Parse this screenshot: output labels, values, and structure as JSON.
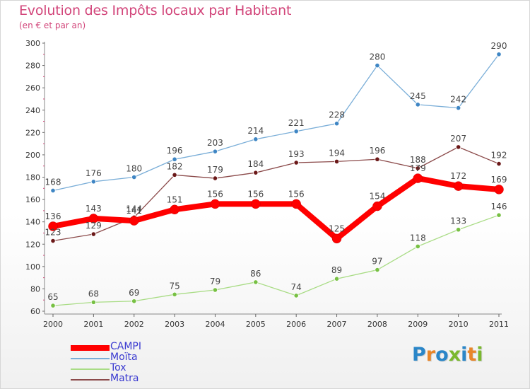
{
  "title": "Evolution des Impôts locaux par Habitant",
  "subtitle": "(en € et par an)",
  "logo": {
    "text": "Proxiti",
    "colors": [
      "#2a86c8",
      "#e8862a",
      "#2a86c8",
      "#7ab82e",
      "#2a86c8",
      "#e8862a",
      "#7ab82e"
    ]
  },
  "chart_data": {
    "type": "line",
    "title": "Evolution des Impôts locaux par Habitant",
    "subtitle": "(en € et par an)",
    "x": [
      "2000",
      "2001",
      "2002",
      "2003",
      "2004",
      "2005",
      "2006",
      "2007",
      "2008",
      "2009",
      "2010",
      "2011"
    ],
    "ylim": [
      60,
      300
    ],
    "yticks": [
      60,
      80,
      100,
      120,
      140,
      160,
      180,
      200,
      220,
      240,
      260,
      280,
      300
    ],
    "grid": false,
    "legend_position": "bottom-left",
    "series": [
      {
        "name": "CAMPI",
        "color": "#ff0000",
        "marker_color": "#ff0000",
        "thick": true,
        "values": [
          136,
          143,
          141,
          151,
          156,
          156,
          156,
          125,
          154,
          179,
          172,
          169
        ],
        "labels": [
          "136",
          "143",
          "141",
          "151",
          "156",
          "156",
          "156",
          "125",
          "154",
          "179",
          "172",
          "169"
        ]
      },
      {
        "name": "Moïta",
        "color": "#7aaed8",
        "marker_color": "#3f86c4",
        "values": [
          168,
          176,
          180,
          196,
          203,
          214,
          221,
          228,
          280,
          245,
          242,
          290
        ],
        "labels": [
          "168",
          "176",
          "180",
          "196",
          "203",
          "214",
          "221",
          "228",
          "280",
          "245",
          "242",
          "290"
        ]
      },
      {
        "name": "Tox",
        "color": "#a9dc85",
        "marker_color": "#77c043",
        "values": [
          65,
          68,
          69,
          75,
          79,
          86,
          74,
          89,
          97,
          118,
          133,
          146
        ],
        "labels": [
          "65",
          "68",
          "69",
          "75",
          "79",
          "86",
          "74",
          "89",
          "97",
          "118",
          "133",
          "146"
        ]
      },
      {
        "name": "Matra",
        "color": "#8b4a4a",
        "marker_color": "#6b1818",
        "values": [
          123,
          129,
          144,
          182,
          179,
          184,
          193,
          194,
          196,
          188,
          207,
          192
        ],
        "labels": [
          "123",
          "129",
          "144",
          "182",
          "179",
          "184",
          "193",
          "194",
          "196",
          "188",
          "207",
          "192"
        ]
      }
    ]
  }
}
